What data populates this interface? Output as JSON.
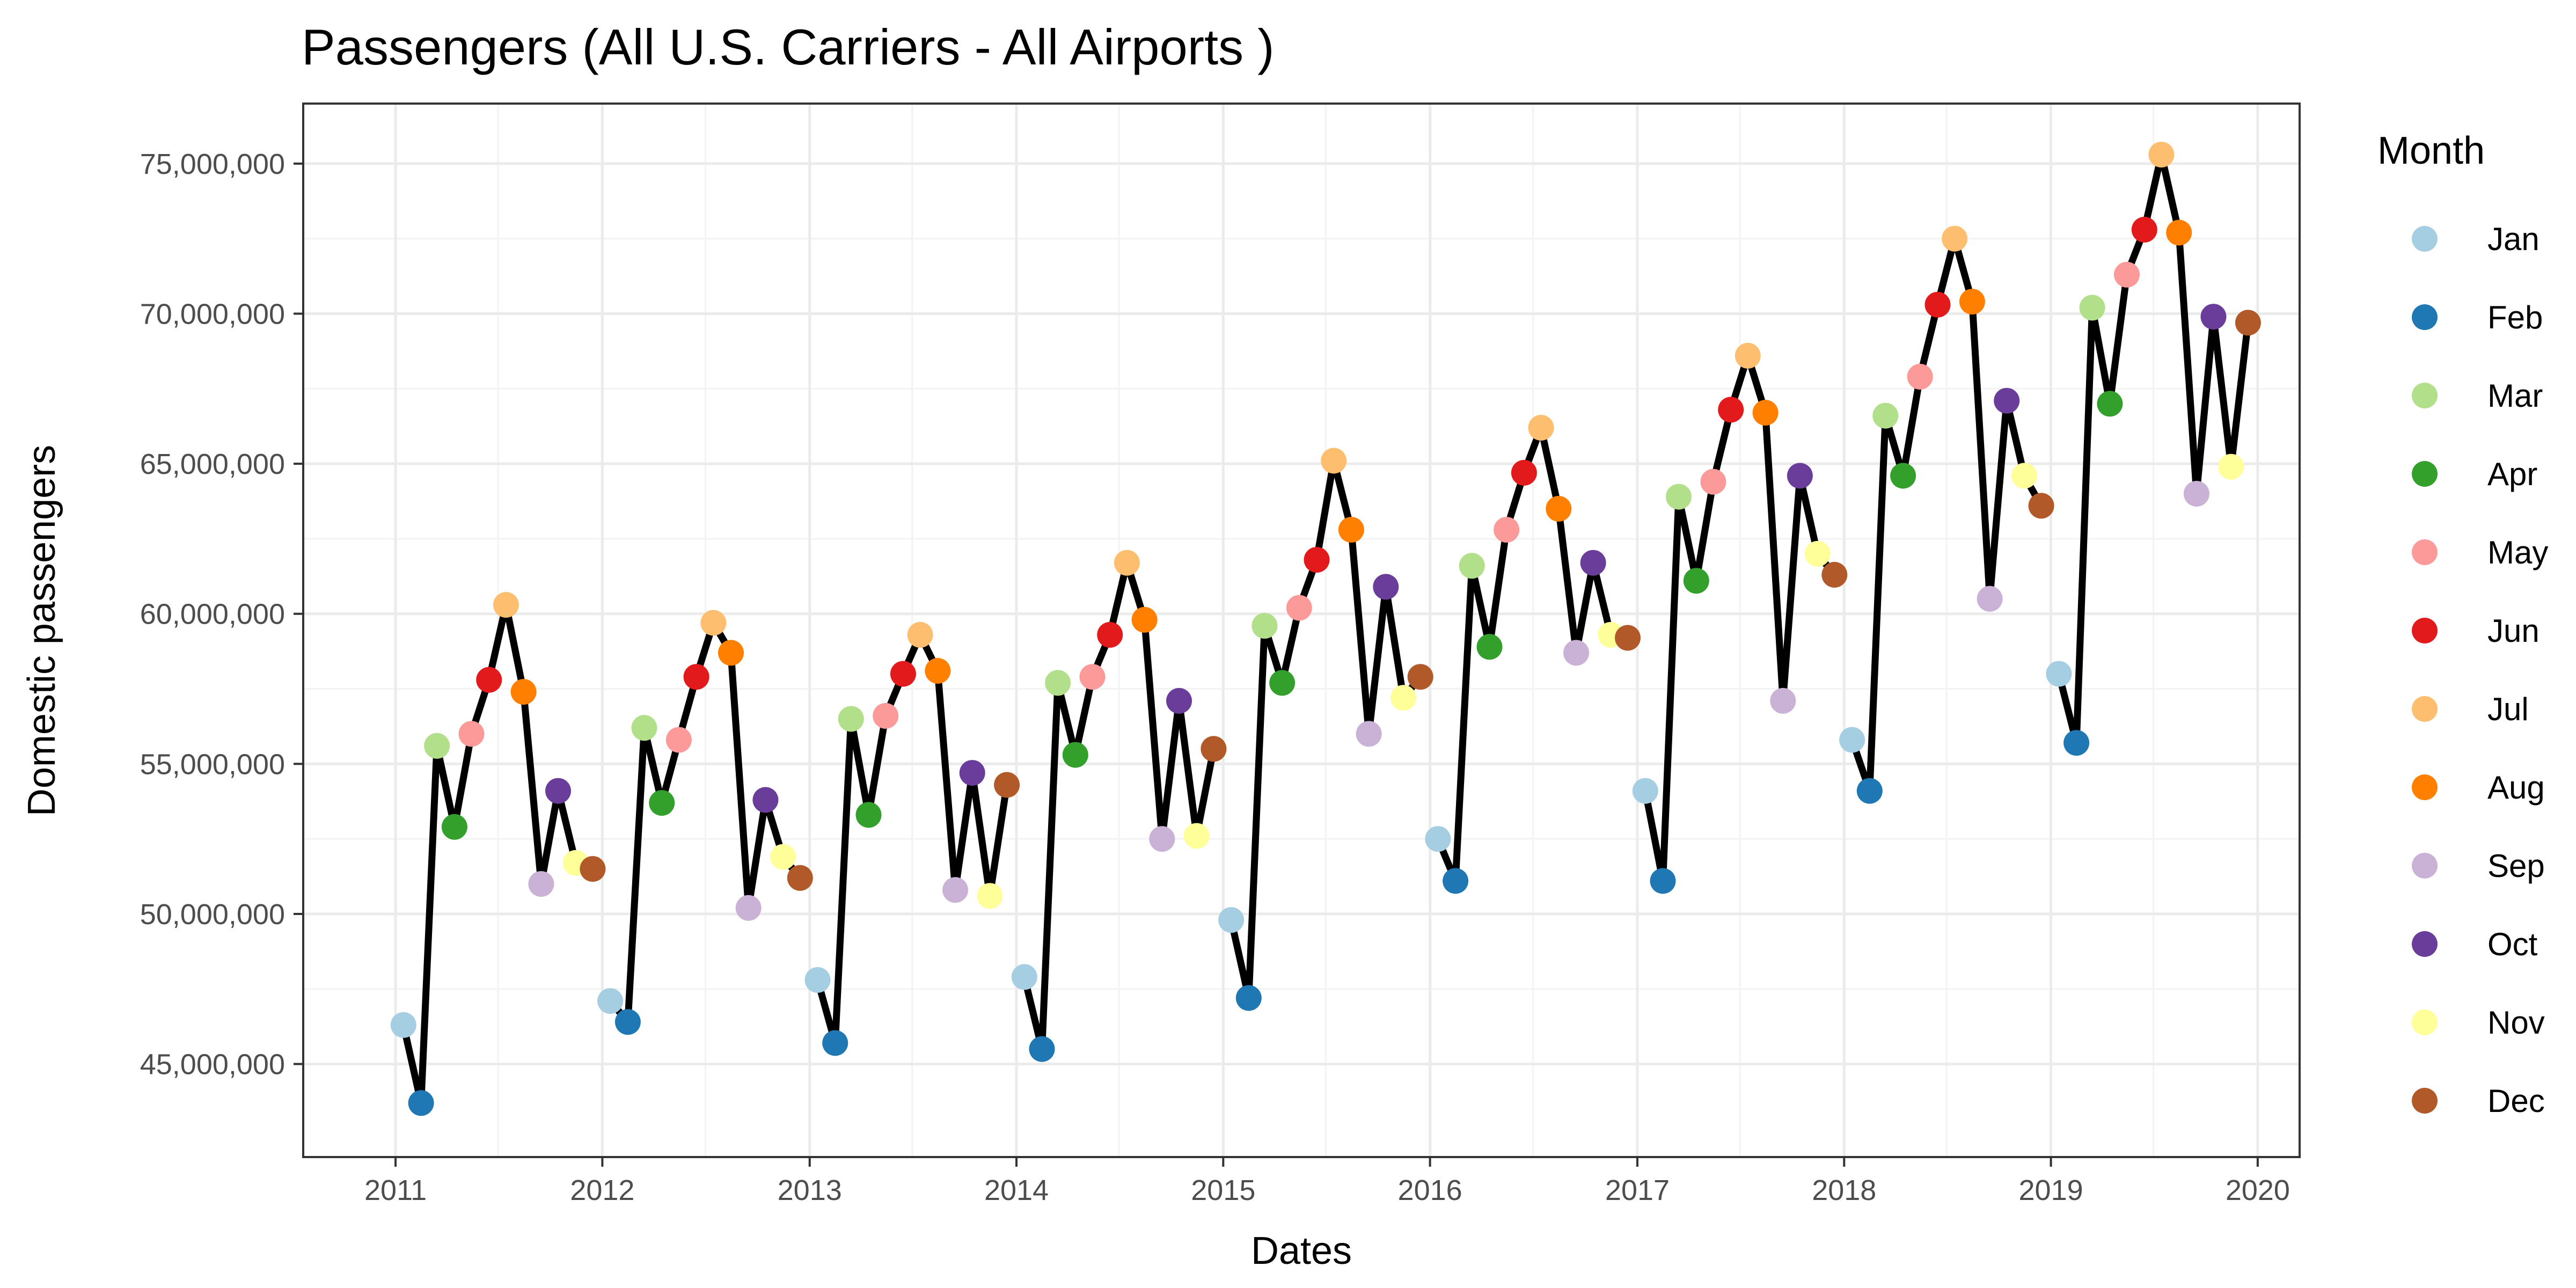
{
  "chart_data": {
    "type": "line",
    "title": "Passengers (All U.S. Carriers - All Airports )",
    "xlabel": "Dates",
    "ylabel": "Domestic passengers",
    "xlim": [
      "2010-07-22",
      "2020-03-15"
    ],
    "ylim": [
      41900000,
      77000000
    ],
    "x_ticks": [
      "2011",
      "2012",
      "2013",
      "2014",
      "2015",
      "2016",
      "2017",
      "2018",
      "2019",
      "2020"
    ],
    "y_ticks": [
      45000000,
      50000000,
      55000000,
      60000000,
      65000000,
      70000000,
      75000000
    ],
    "y_tick_labels": [
      "45,000,000",
      "50,000,000",
      "55,000,000",
      "60,000,000",
      "65,000,000",
      "70,000,000",
      "75,000,000"
    ],
    "grid": true,
    "line_color": "#000000",
    "legend": {
      "title": "Month",
      "placement": "right",
      "entries": [
        {
          "label": "Jan",
          "color": "#a6cee3"
        },
        {
          "label": "Feb",
          "color": "#1f78b4"
        },
        {
          "label": "Mar",
          "color": "#b2df8a"
        },
        {
          "label": "Apr",
          "color": "#33a02c"
        },
        {
          "label": "May",
          "color": "#fb9a99"
        },
        {
          "label": "Jun",
          "color": "#e31a1c"
        },
        {
          "label": "Jul",
          "color": "#fdbf6f"
        },
        {
          "label": "Aug",
          "color": "#ff7f00"
        },
        {
          "label": "Sep",
          "color": "#cab2d6"
        },
        {
          "label": "Oct",
          "color": "#6a3d9a"
        },
        {
          "label": "Nov",
          "color": "#ffff99"
        },
        {
          "label": "Dec",
          "color": "#b15928"
        }
      ]
    },
    "series": [
      {
        "year": 2011,
        "values": [
          46300000,
          43700000,
          55600000,
          52900000,
          56000000,
          57800000,
          60300000,
          57400000,
          51000000,
          54100000,
          51700000,
          51500000
        ]
      },
      {
        "year": 2012,
        "values": [
          47100000,
          46400000,
          56200000,
          53700000,
          55800000,
          57900000,
          59700000,
          58700000,
          50200000,
          53800000,
          51900000,
          51200000
        ]
      },
      {
        "year": 2013,
        "values": [
          47800000,
          45700000,
          56500000,
          53300000,
          56600000,
          58000000,
          59300000,
          58100000,
          50800000,
          54700000,
          50600000,
          54300000
        ]
      },
      {
        "year": 2014,
        "values": [
          47900000,
          45500000,
          57700000,
          55300000,
          57900000,
          59300000,
          61700000,
          59800000,
          52500000,
          57100000,
          52600000,
          55500000
        ]
      },
      {
        "year": 2015,
        "values": [
          49800000,
          47200000,
          59600000,
          57700000,
          60200000,
          61800000,
          65100000,
          62800000,
          56000000,
          60900000,
          57200000,
          57900000
        ]
      },
      {
        "year": 2016,
        "values": [
          52500000,
          51100000,
          61600000,
          58900000,
          62800000,
          64700000,
          66200000,
          63500000,
          58700000,
          61700000,
          59300000,
          59200000
        ]
      },
      {
        "year": 2017,
        "values": [
          54100000,
          51100000,
          63900000,
          61100000,
          64400000,
          66800000,
          68600000,
          66700000,
          57100000,
          64600000,
          62000000,
          61300000
        ]
      },
      {
        "year": 2018,
        "values": [
          55800000,
          54100000,
          66600000,
          64600000,
          67900000,
          70300000,
          72500000,
          70400000,
          60500000,
          67100000,
          64600000,
          63600000
        ]
      },
      {
        "year": 2019,
        "values": [
          58000000,
          55700000,
          70200000,
          67000000,
          71300000,
          72800000,
          75300000,
          72700000,
          64000000,
          69900000,
          64900000,
          69700000
        ]
      }
    ]
  }
}
